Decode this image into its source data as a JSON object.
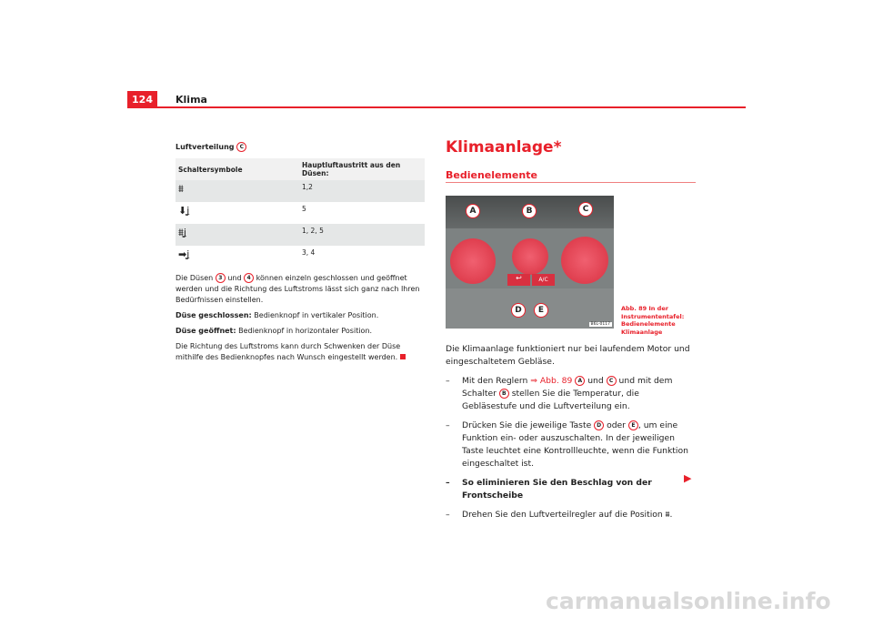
{
  "header": {
    "page_number": "124",
    "section": "Klima"
  },
  "left": {
    "heading": "Luftverteilung",
    "heading_ref": "C",
    "table": {
      "columns": [
        "Schaltersymbole",
        "Hauptluftaustritt aus den Düsen:"
      ],
      "rows": [
        {
          "icon": "defrost-windshield-icon",
          "value": "1,2"
        },
        {
          "icon": "footwell-air-icon",
          "value": "5"
        },
        {
          "icon": "windshield-footwell-air-icon",
          "value": "1, 2, 5"
        },
        {
          "icon": "face-vent-air-icon",
          "value": "3, 4"
        }
      ]
    },
    "p1_a": "Die Düsen",
    "p1_ref1": "3",
    "p1_b": "und",
    "p1_ref2": "4",
    "p1_c": "können einzeln geschlossen und geöffnet werden und die Richtung des Luftstroms lässt sich ganz nach Ihren Bedürfnissen einstellen.",
    "closed_label": "Düse geschlossen:",
    "closed_text": "Bedienknopf in vertikaler Position.",
    "open_label": "Düse geöffnet:",
    "open_text": "Bedienknopf in horizontaler Position.",
    "p2": "Die Richtung des Luftstroms kann durch Schwenken der Düse mithilfe des Bedienknopfes nach Wunsch eingestellt werden."
  },
  "right": {
    "title": "Klimaanlage*",
    "subtitle": "Bedienelemente",
    "figure": {
      "labels": [
        "A",
        "B",
        "C",
        "D",
        "E"
      ],
      "button_ac": "A/C",
      "code": "B6L-0117"
    },
    "caption": "Abb. 89   In der Instrumententafel: Bedienelemente Klimaanlage",
    "intro": "Die Klimaanlage funktioniert nur bei laufendem Motor und eingeschaltetem Gebläse.",
    "b1_a": "Mit den Reglern",
    "b1_link": "⇒ Abb. 89",
    "b1_r1": "A",
    "b1_b": "und",
    "b1_r2": "C",
    "b1_c": "und mit dem Schalter",
    "b1_r3": "B",
    "b1_d": "stellen Sie die Temperatur, die Gebläsestufe und die Luftverteilung ein.",
    "b2_a": "Drücken Sie die jeweilige Taste",
    "b2_r1": "D",
    "b2_b": "oder",
    "b2_r2": "E",
    "b2_c": ", um eine Funktion ein- oder auszuschalten. In der jeweiligen Taste leuchtet eine Kontrollleuchte, wenn die Funktion eingeschaltet ist.",
    "b3": "So eliminieren Sie den Beschlag von der Frontscheibe",
    "b4": "Drehen Sie den Luftverteilregler auf die Position",
    "b4_end": ".",
    "dash": "–"
  },
  "footer": {
    "watermark": "carmanualsonline.info"
  },
  "colors": {
    "accent": "#e8202a",
    "row_shade": "#e5e7e7"
  }
}
